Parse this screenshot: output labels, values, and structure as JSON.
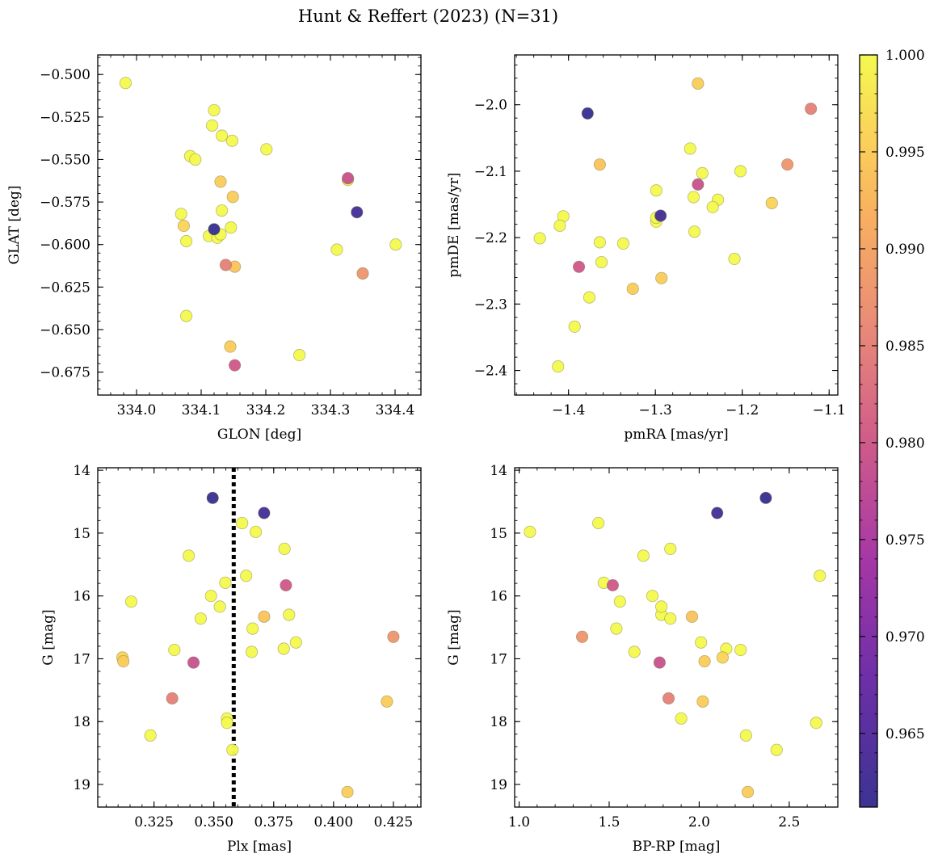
{
  "figure_title": "Hunt & Reffert (2023) (N=31)",
  "colorbar": {
    "range": [
      0.9612,
      1.0
    ],
    "tick_values": [
      0.965,
      0.97,
      0.975,
      0.98,
      0.985,
      0.99,
      0.995,
      1.0
    ],
    "tick_labels": [
      "0.965",
      "0.970",
      "0.975",
      "0.980",
      "0.985",
      "0.990",
      "0.995",
      "1.000"
    ],
    "colormap": "plasma-like",
    "stops": [
      {
        "v": 0.9612,
        "color": "#3b3393"
      },
      {
        "v": 0.968,
        "color": "#6f2fa8"
      },
      {
        "v": 0.974,
        "color": "#a637a6"
      },
      {
        "v": 0.98,
        "color": "#cf5b8a"
      },
      {
        "v": 0.986,
        "color": "#e98a78"
      },
      {
        "v": 0.992,
        "color": "#f9b25f"
      },
      {
        "v": 0.996,
        "color": "#fad45a"
      },
      {
        "v": 1.0,
        "color": "#f4f94f"
      }
    ]
  },
  "stars": [
    {
      "glon": 333.983,
      "glat": -0.505,
      "pmra": -1.433,
      "pmde": -2.201,
      "plx": 0.3235,
      "g": 18.22,
      "bprp": 2.26,
      "p": 1.0
    },
    {
      "glon": 334.12,
      "glat": -0.521,
      "pmra": -1.412,
      "pmde": -2.394,
      "plx": 0.3578,
      "g": 18.45,
      "bprp": 2.43,
      "p": 1.0
    },
    {
      "glon": 334.117,
      "glat": -0.53,
      "pmra": -1.406,
      "pmde": -2.168,
      "plx": 0.3662,
      "g": 16.52,
      "bprp": 1.54,
      "p": 1.0
    },
    {
      "glon": 334.132,
      "glat": -0.536,
      "pmra": -1.41,
      "pmde": -2.182,
      "plx": 0.3814,
      "g": 16.3,
      "bprp": 1.79,
      "p": 1.0
    },
    {
      "glon": 334.148,
      "glat": -0.539,
      "pmra": -1.393,
      "pmde": -2.334,
      "plx": 0.3792,
      "g": 16.84,
      "bprp": 2.15,
      "p": 1.0
    },
    {
      "glon": 334.201,
      "glat": -0.544,
      "pmra": -1.376,
      "pmde": -2.29,
      "plx": 0.3658,
      "g": 16.89,
      "bprp": 1.64,
      "p": 1.0
    },
    {
      "glon": 334.083,
      "glat": -0.548,
      "pmra": -1.364,
      "pmde": -2.207,
      "plx": 0.3555,
      "g": 17.95,
      "bprp": 1.9,
      "p": 1.0
    },
    {
      "glon": 334.091,
      "glat": -0.55,
      "pmra": -1.362,
      "pmde": -2.237,
      "plx": 0.3555,
      "g": 18.02,
      "bprp": 2.65,
      "p": 1.0
    },
    {
      "glon": 334.069,
      "glat": -0.582,
      "pmra": -1.337,
      "pmde": -2.209,
      "plx": 0.3395,
      "g": 15.36,
      "bprp": 1.69,
      "p": 1.0
    },
    {
      "glon": 334.077,
      "glat": -0.598,
      "pmra": -1.299,
      "pmde": -2.129,
      "plx": 0.3548,
      "g": 15.79,
      "bprp": 1.47,
      "p": 1.0
    },
    {
      "glon": 334.077,
      "glat": -0.642,
      "pmra": -1.299,
      "pmde": -2.176,
      "plx": 0.3488,
      "g": 16.0,
      "bprp": 1.74,
      "p": 1.0
    },
    {
      "glon": 334.112,
      "glat": -0.595,
      "pmra": -1.299,
      "pmde": -2.17,
      "plx": 0.3525,
      "g": 16.17,
      "bprp": 1.79,
      "p": 1.0
    },
    {
      "glon": 334.125,
      "glat": -0.596,
      "pmra": -1.26,
      "pmde": -2.066,
      "plx": 0.3445,
      "g": 16.36,
      "bprp": 1.84,
      "p": 1.0
    },
    {
      "glon": 334.13,
      "glat": -0.594,
      "pmra": -1.256,
      "pmde": -2.139,
      "plx": 0.3155,
      "g": 16.09,
      "bprp": 1.56,
      "p": 1.0
    },
    {
      "glon": 334.132,
      "glat": -0.58,
      "pmra": -1.255,
      "pmde": -2.191,
      "plx": 0.3635,
      "g": 15.68,
      "bprp": 2.67,
      "p": 1.0
    },
    {
      "glon": 334.146,
      "glat": -0.59,
      "pmra": -1.246,
      "pmde": -2.103,
      "plx": 0.3618,
      "g": 14.84,
      "bprp": 1.44,
      "p": 1.0
    },
    {
      "glon": 334.31,
      "glat": -0.603,
      "pmra": -1.228,
      "pmde": -2.143,
      "plx": 0.3675,
      "g": 14.98,
      "bprp": 1.06,
      "p": 1.0
    },
    {
      "glon": 334.327,
      "glat": -0.562,
      "pmra": -1.234,
      "pmde": -2.154,
      "plx": 0.3335,
      "g": 16.86,
      "bprp": 2.23,
      "p": 1.0
    },
    {
      "glon": 334.401,
      "glat": -0.6,
      "pmra": -1.202,
      "pmde": -2.1,
      "plx": 0.3795,
      "g": 15.25,
      "bprp": 1.84,
      "p": 1.0
    },
    {
      "glon": 334.252,
      "glat": -0.665,
      "pmra": -1.209,
      "pmde": -2.232,
      "plx": 0.3843,
      "g": 16.74,
      "bprp": 2.01,
      "p": 1.0
    },
    {
      "glon": 334.073,
      "glat": -0.589,
      "pmra": -1.166,
      "pmde": -2.148,
      "plx": 0.3118,
      "g": 16.98,
      "bprp": 2.13,
      "p": 0.996
    },
    {
      "glon": 334.149,
      "glat": -0.572,
      "pmra": -1.251,
      "pmde": -1.968,
      "plx": 0.3122,
      "g": 17.04,
      "bprp": 2.03,
      "p": 0.995
    },
    {
      "glon": 334.152,
      "glat": -0.613,
      "pmra": -1.364,
      "pmde": -2.09,
      "plx": 0.371,
      "g": 16.33,
      "bprp": 1.96,
      "p": 0.994
    },
    {
      "glon": 334.145,
      "glat": -0.66,
      "pmra": -1.293,
      "pmde": -2.261,
      "plx": 0.4058,
      "g": 19.12,
      "bprp": 2.27,
      "p": 0.995
    },
    {
      "glon": 334.13,
      "glat": -0.563,
      "pmra": -1.326,
      "pmde": -2.277,
      "plx": 0.4223,
      "g": 17.68,
      "bprp": 2.02,
      "p": 0.995
    },
    {
      "glon": 334.35,
      "glat": -0.617,
      "pmra": -1.148,
      "pmde": -2.09,
      "plx": 0.425,
      "g": 16.65,
      "bprp": 1.35,
      "p": 0.988
    },
    {
      "glon": 334.138,
      "glat": -0.612,
      "pmra": -1.121,
      "pmde": -2.006,
      "plx": 0.3326,
      "g": 17.63,
      "bprp": 1.83,
      "p": 0.985
    },
    {
      "glon": 334.152,
      "glat": -0.671,
      "pmra": -1.388,
      "pmde": -2.244,
      "plx": 0.3801,
      "g": 15.83,
      "bprp": 1.52,
      "p": 0.98
    },
    {
      "glon": 334.327,
      "glat": -0.561,
      "pmra": -1.251,
      "pmde": -2.12,
      "plx": 0.3415,
      "g": 17.06,
      "bprp": 1.78,
      "p": 0.979
    },
    {
      "glon": 334.12,
      "glat": -0.591,
      "pmra": -1.378,
      "pmde": -2.013,
      "plx": 0.3495,
      "g": 14.44,
      "bprp": 2.37,
      "p": 0.9612
    },
    {
      "glon": 334.341,
      "glat": -0.581,
      "pmra": -1.294,
      "pmde": -2.167,
      "plx": 0.371,
      "g": 14.68,
      "bprp": 2.1,
      "p": 0.9625
    }
  ],
  "chart_data": [
    {
      "type": "scatter",
      "title": "",
      "xlabel": "GLON [deg]",
      "ylabel": "GLAT [deg]",
      "xfield": "glon",
      "yfield": "glat",
      "xlim": [
        333.94,
        334.44
      ],
      "ylim": [
        -0.6885,
        -0.4885
      ],
      "y_inverted": false,
      "xticks": [
        334.0,
        334.1,
        334.2,
        334.3,
        334.4
      ],
      "xtick_labels": [
        "334.0",
        "334.1",
        "334.2",
        "334.3",
        "334.4"
      ],
      "yticks": [
        -0.5,
        -0.525,
        -0.55,
        -0.575,
        -0.6,
        -0.625,
        -0.65,
        -0.675
      ],
      "ytick_labels": [
        "−0.500",
        "−0.525",
        "−0.550",
        "−0.575",
        "−0.600",
        "−0.625",
        "−0.650",
        "−0.675"
      ],
      "vline": null
    },
    {
      "type": "scatter",
      "title": "",
      "xlabel": "pmRA [mas/yr]",
      "ylabel": "pmDE [mas/yr]",
      "xfield": "pmra",
      "yfield": "pmde",
      "xlim": [
        -1.462,
        -1.09
      ],
      "ylim": [
        -2.437,
        -1.925
      ],
      "y_inverted": false,
      "xticks": [
        -1.4,
        -1.3,
        -1.2,
        -1.1
      ],
      "xtick_labels": [
        "−1.4",
        "−1.3",
        "−1.2",
        "−1.1"
      ],
      "yticks": [
        -2.0,
        -2.1,
        -2.2,
        -2.3,
        -2.4
      ],
      "ytick_labels": [
        "−2.0",
        "−2.1",
        "−2.2",
        "−2.3",
        "−2.4"
      ],
      "vline": null
    },
    {
      "type": "scatter",
      "title": "",
      "xlabel": "Plx [mas]",
      "ylabel": "G [mag]",
      "xfield": "plx",
      "yfield": "g",
      "xlim": [
        0.3015,
        0.4365
      ],
      "ylim": [
        13.96,
        19.36
      ],
      "y_inverted": true,
      "xticks": [
        0.325,
        0.35,
        0.375,
        0.4,
        0.425
      ],
      "xtick_labels": [
        "0.325",
        "0.350",
        "0.375",
        "0.400",
        "0.425"
      ],
      "yticks": [
        14,
        15,
        16,
        17,
        18,
        19
      ],
      "ytick_labels": [
        "14",
        "15",
        "16",
        "17",
        "18",
        "19"
      ],
      "vline": 0.3583
    },
    {
      "type": "scatter",
      "title": "",
      "xlabel": "BP-RP [mag]",
      "ylabel": "G [mag]",
      "xfield": "bprp",
      "yfield": "g",
      "xlim": [
        0.975,
        2.77
      ],
      "ylim": [
        13.96,
        19.36
      ],
      "y_inverted": true,
      "xticks": [
        1.0,
        1.5,
        2.0,
        2.5
      ],
      "xtick_labels": [
        "1.0",
        "1.5",
        "2.0",
        "2.5"
      ],
      "yticks": [
        14,
        15,
        16,
        17,
        18,
        19
      ],
      "ytick_labels": [
        "14",
        "15",
        "16",
        "17",
        "18",
        "19"
      ],
      "vline": null
    }
  ]
}
